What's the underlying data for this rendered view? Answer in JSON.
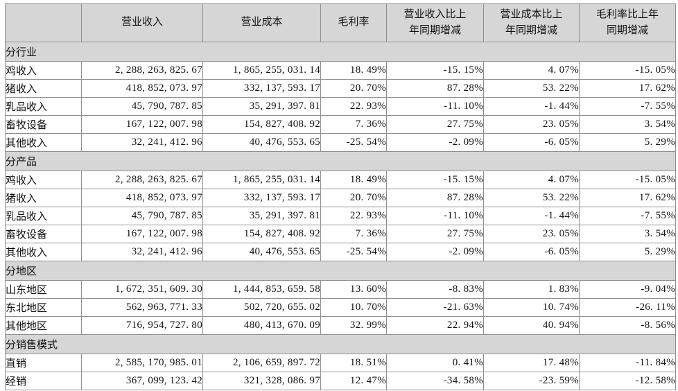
{
  "colors": {
    "header_bg": "#d6d6d6",
    "section_bg": "#d6d6d6",
    "border": "#8f8f8f",
    "text": "#111111",
    "page_bg": "#ffffff"
  },
  "table": {
    "columns": [
      "",
      "营业收入",
      "营业成本",
      "毛利率",
      "营业收入比上\n年同期增减",
      "营业成本比上\n年同期增减",
      "毛利率比上年\n同期增减"
    ],
    "sections": [
      {
        "label": "分行业",
        "rows": [
          {
            "label": "鸡收入",
            "values": [
              "2, 288, 263, 825. 67",
              "1, 865, 255, 031. 14",
              "18. 49%",
              "-15. 15%",
              "4. 07%",
              "-15. 05%"
            ]
          },
          {
            "label": "猪收入",
            "values": [
              "418, 852, 073. 97",
              "332, 137, 593. 17",
              "20. 70%",
              "87. 28%",
              "53. 22%",
              "17. 62%"
            ]
          },
          {
            "label": "乳品收入",
            "values": [
              "45, 790, 787. 85",
              "35, 291, 397. 81",
              "22. 93%",
              "-11. 10%",
              "-1. 44%",
              "-7. 55%"
            ]
          },
          {
            "label": "畜牧设备",
            "values": [
              "167, 122, 007. 98",
              "154, 827, 408. 92",
              "7. 36%",
              "27. 75%",
              "23. 05%",
              "3. 54%"
            ]
          },
          {
            "label": "其他收入",
            "values": [
              "32, 241, 412. 96",
              "40, 476, 553. 65",
              "-25. 54%",
              "-2. 09%",
              "-6. 05%",
              "5. 29%"
            ]
          }
        ]
      },
      {
        "label": "分产品",
        "rows": [
          {
            "label": "鸡收入",
            "values": [
              "2, 288, 263, 825. 67",
              "1, 865, 255, 031. 14",
              "18. 49%",
              "-15. 15%",
              "4. 07%",
              "-15. 05%"
            ]
          },
          {
            "label": "猪收入",
            "values": [
              "418, 852, 073. 97",
              "332, 137, 593. 17",
              "20. 70%",
              "87. 28%",
              "53. 22%",
              "17. 62%"
            ]
          },
          {
            "label": "乳品收入",
            "values": [
              "45, 790, 787. 85",
              "35, 291, 397. 81",
              "22. 93%",
              "-11. 10%",
              "-1. 44%",
              "-7. 55%"
            ]
          },
          {
            "label": "畜牧设备",
            "values": [
              "167, 122, 007. 98",
              "154, 827, 408. 92",
              "7. 36%",
              "27. 75%",
              "23. 05%",
              "3. 54%"
            ]
          },
          {
            "label": "其他收入",
            "values": [
              "32, 241, 412. 96",
              "40, 476, 553. 65",
              "-25. 54%",
              "-2. 09%",
              "-6. 05%",
              "5. 29%"
            ]
          }
        ]
      },
      {
        "label": "分地区",
        "rows": [
          {
            "label": "山东地区",
            "values": [
              "1, 672, 351, 609. 30",
              "1, 444, 853, 659. 58",
              "13. 60%",
              "-8. 83%",
              "1. 83%",
              "-9. 04%"
            ]
          },
          {
            "label": "东北地区",
            "values": [
              "562, 963, 771. 33",
              "502, 720, 655. 02",
              "10. 70%",
              "-21. 63%",
              "10. 74%",
              "-26. 11%"
            ]
          },
          {
            "label": "其他地区",
            "values": [
              "716, 954, 727. 80",
              "480, 413, 670. 09",
              "32. 99%",
              "22. 94%",
              "40. 94%",
              "-8. 56%"
            ]
          }
        ]
      },
      {
        "label": "分销售模式",
        "rows": [
          {
            "label": "直销",
            "values": [
              "2, 585, 170, 985. 01",
              "2, 106, 659, 897. 72",
              "18. 51%",
              "0. 41%",
              "17. 48%",
              "-11. 84%"
            ]
          },
          {
            "label": "经销",
            "values": [
              "367, 099, 123. 42",
              "321, 328, 086. 97",
              "12. 47%",
              "-34. 58%",
              "-23. 59%",
              "-12. 58%"
            ]
          }
        ]
      }
    ]
  }
}
